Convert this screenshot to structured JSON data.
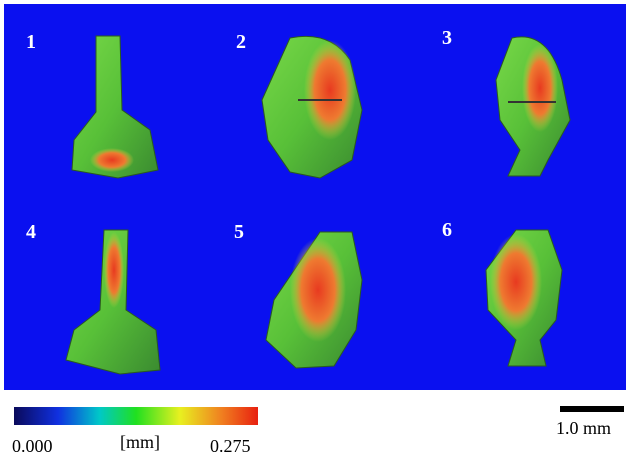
{
  "panels": [
    "1",
    "2",
    "3",
    "4",
    "5",
    "6"
  ],
  "colorbar": {
    "min_label": "0.000",
    "unit_label": "[mm]",
    "max_label": "0.275"
  },
  "scale_bar": {
    "label": "1.0 mm"
  }
}
